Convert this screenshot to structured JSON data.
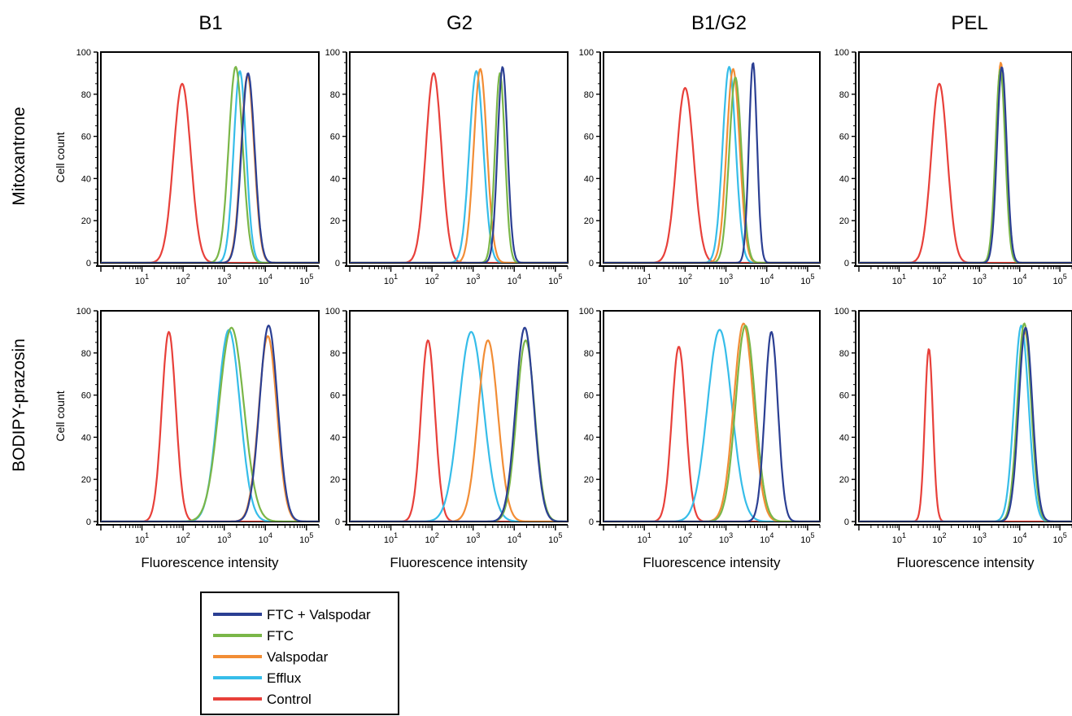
{
  "figure": {
    "column_titles": [
      "B1",
      "G2",
      "B1/G2",
      "PEL"
    ],
    "row_labels": [
      "Mitoxantrone",
      "BODIPY-prazosin"
    ],
    "y_axis_label": "Cell count",
    "x_axis_label": "Fluorescence intensity"
  },
  "legend": {
    "entries": [
      {
        "label": "FTC + Valspodar",
        "color": "#2b3f93"
      },
      {
        "label": "FTC",
        "color": "#7ab648"
      },
      {
        "label": "Valspodar",
        "color": "#f28d35"
      },
      {
        "label": "Efflux",
        "color": "#36bde9"
      },
      {
        "label": "Control",
        "color": "#e8403a"
      }
    ],
    "placement": "bottom-left"
  },
  "chart_data": [
    {
      "type": "line",
      "row": "Mitoxantrone",
      "column": "B1",
      "xscale": "log",
      "xlim": [
        1,
        200000
      ],
      "ylim": [
        0,
        100
      ],
      "y_ticks": [
        0,
        20,
        40,
        60,
        80,
        100
      ],
      "x_tick_labels": [
        "10^1",
        "10^2",
        "10^3",
        "10^4",
        "10^5"
      ],
      "show_xlabel": false,
      "show_ylabel": true,
      "series": [
        {
          "name": "FTC + Valspodar",
          "peak_x": 3800,
          "peak_y": 90,
          "width": 0.16
        },
        {
          "name": "FTC",
          "peak_x": 1900,
          "peak_y": 93,
          "width": 0.17
        },
        {
          "name": "Valspodar",
          "peak_x": 3700,
          "peak_y": 89,
          "width": 0.16
        },
        {
          "name": "Efflux",
          "peak_x": 2400,
          "peak_y": 91,
          "width": 0.15
        },
        {
          "name": "Control",
          "peak_x": 95,
          "peak_y": 85,
          "width": 0.21
        }
      ]
    },
    {
      "type": "line",
      "row": "Mitoxantrone",
      "column": "G2",
      "xscale": "log",
      "xlim": [
        1,
        200000
      ],
      "ylim": [
        0,
        100
      ],
      "y_ticks": [
        0,
        20,
        40,
        60,
        80,
        100
      ],
      "x_tick_labels": [
        "10^1",
        "10^2",
        "10^3",
        "10^4",
        "10^5"
      ],
      "show_xlabel": false,
      "show_ylabel": false,
      "series": [
        {
          "name": "FTC + Valspodar",
          "peak_x": 5200,
          "peak_y": 93,
          "width": 0.12
        },
        {
          "name": "FTC",
          "peak_x": 4500,
          "peak_y": 90,
          "width": 0.12
        },
        {
          "name": "Valspodar",
          "peak_x": 1500,
          "peak_y": 92,
          "width": 0.16
        },
        {
          "name": "Efflux",
          "peak_x": 1200,
          "peak_y": 91,
          "width": 0.17
        },
        {
          "name": "Control",
          "peak_x": 110,
          "peak_y": 90,
          "width": 0.19
        }
      ]
    },
    {
      "type": "line",
      "row": "Mitoxantrone",
      "column": "B1/G2",
      "xscale": "log",
      "xlim": [
        1,
        200000
      ],
      "ylim": [
        0,
        100
      ],
      "y_ticks": [
        0,
        20,
        40,
        60,
        80,
        100
      ],
      "x_tick_labels": [
        "10^1",
        "10^2",
        "10^3",
        "10^4",
        "10^5"
      ],
      "show_xlabel": false,
      "show_ylabel": false,
      "series": [
        {
          "name": "FTC + Valspodar",
          "peak_x": 4600,
          "peak_y": 95,
          "width": 0.1
        },
        {
          "name": "FTC",
          "peak_x": 1700,
          "peak_y": 88,
          "width": 0.15
        },
        {
          "name": "Valspodar",
          "peak_x": 1500,
          "peak_y": 92,
          "width": 0.16
        },
        {
          "name": "Efflux",
          "peak_x": 1200,
          "peak_y": 93,
          "width": 0.16
        },
        {
          "name": "Control",
          "peak_x": 100,
          "peak_y": 83,
          "width": 0.21
        }
      ]
    },
    {
      "type": "line",
      "row": "Mitoxantrone",
      "column": "PEL",
      "xscale": "log",
      "xlim": [
        1,
        200000
      ],
      "ylim": [
        0,
        100
      ],
      "y_ticks": [
        0,
        20,
        40,
        60,
        80,
        100
      ],
      "x_tick_labels": [
        "10^1",
        "10^2",
        "10^3",
        "10^4",
        "10^5"
      ],
      "show_xlabel": false,
      "show_ylabel": false,
      "series": [
        {
          "name": "FTC + Valspodar",
          "peak_x": 3600,
          "peak_y": 93,
          "width": 0.12
        },
        {
          "name": "FTC",
          "peak_x": 3300,
          "peak_y": 92,
          "width": 0.12
        },
        {
          "name": "Valspodar",
          "peak_x": 3400,
          "peak_y": 95,
          "width": 0.12
        },
        {
          "name": "Efflux",
          "peak_x": 3500,
          "peak_y": 90,
          "width": 0.12
        },
        {
          "name": "Control",
          "peak_x": 100,
          "peak_y": 85,
          "width": 0.2
        }
      ]
    },
    {
      "type": "line",
      "row": "BODIPY-prazosin",
      "column": "B1",
      "xscale": "log",
      "xlim": [
        1,
        200000
      ],
      "ylim": [
        0,
        100
      ],
      "y_ticks": [
        0,
        20,
        40,
        60,
        80,
        100
      ],
      "x_tick_labels": [
        "10^1",
        "10^2",
        "10^3",
        "10^4",
        "10^5"
      ],
      "show_xlabel": true,
      "show_ylabel": true,
      "series": [
        {
          "name": "FTC + Valspodar",
          "peak_x": 12000,
          "peak_y": 93,
          "width": 0.22
        },
        {
          "name": "FTC",
          "peak_x": 1500,
          "peak_y": 92,
          "width": 0.3
        },
        {
          "name": "Valspodar",
          "peak_x": 11500,
          "peak_y": 88,
          "width": 0.22
        },
        {
          "name": "Efflux",
          "peak_x": 1300,
          "peak_y": 91,
          "width": 0.27
        },
        {
          "name": "Control",
          "peak_x": 45,
          "peak_y": 90,
          "width": 0.17
        }
      ]
    },
    {
      "type": "line",
      "row": "BODIPY-prazosin",
      "column": "G2",
      "xscale": "log",
      "xlim": [
        1,
        200000
      ],
      "ylim": [
        0,
        100
      ],
      "y_ticks": [
        0,
        20,
        40,
        60,
        80,
        100
      ],
      "x_tick_labels": [
        "10^1",
        "10^2",
        "10^3",
        "10^4",
        "10^5"
      ],
      "show_xlabel": true,
      "show_ylabel": false,
      "series": [
        {
          "name": "FTC + Valspodar",
          "peak_x": 18000,
          "peak_y": 92,
          "width": 0.22
        },
        {
          "name": "FTC",
          "peak_x": 19000,
          "peak_y": 86,
          "width": 0.22
        },
        {
          "name": "Valspodar",
          "peak_x": 2300,
          "peak_y": 86,
          "width": 0.24
        },
        {
          "name": "Efflux",
          "peak_x": 900,
          "peak_y": 90,
          "width": 0.3
        },
        {
          "name": "Control",
          "peak_x": 80,
          "peak_y": 86,
          "width": 0.17
        }
      ]
    },
    {
      "type": "line",
      "row": "BODIPY-prazosin",
      "column": "B1/G2",
      "xscale": "log",
      "xlim": [
        1,
        200000
      ],
      "ylim": [
        0,
        100
      ],
      "y_ticks": [
        0,
        20,
        40,
        60,
        80,
        100
      ],
      "x_tick_labels": [
        "10^1",
        "10^2",
        "10^3",
        "10^4",
        "10^5"
      ],
      "show_xlabel": true,
      "show_ylabel": false,
      "series": [
        {
          "name": "FTC + Valspodar",
          "peak_x": 13000,
          "peak_y": 90,
          "width": 0.16
        },
        {
          "name": "FTC",
          "peak_x": 3000,
          "peak_y": 93,
          "width": 0.24
        },
        {
          "name": "Valspodar",
          "peak_x": 2700,
          "peak_y": 94,
          "width": 0.24
        },
        {
          "name": "Efflux",
          "peak_x": 700,
          "peak_y": 91,
          "width": 0.3
        },
        {
          "name": "Control",
          "peak_x": 70,
          "peak_y": 83,
          "width": 0.17
        }
      ]
    },
    {
      "type": "line",
      "row": "BODIPY-prazosin",
      "column": "PEL",
      "xscale": "log",
      "xlim": [
        1,
        200000
      ],
      "ylim": [
        0,
        100
      ],
      "y_ticks": [
        0,
        20,
        40,
        60,
        80,
        100
      ],
      "x_tick_labels": [
        "10^1",
        "10^2",
        "10^3",
        "10^4",
        "10^5"
      ],
      "show_xlabel": true,
      "show_ylabel": false,
      "series": [
        {
          "name": "FTC + Valspodar",
          "peak_x": 14000,
          "peak_y": 92,
          "width": 0.17
        },
        {
          "name": "FTC",
          "peak_x": 13000,
          "peak_y": 94,
          "width": 0.17
        },
        {
          "name": "Valspodar",
          "peak_x": 13500,
          "peak_y": 90,
          "width": 0.17
        },
        {
          "name": "Efflux",
          "peak_x": 11000,
          "peak_y": 93,
          "width": 0.18
        },
        {
          "name": "Control",
          "peak_x": 55,
          "peak_y": 82,
          "width": 0.1
        }
      ]
    }
  ]
}
